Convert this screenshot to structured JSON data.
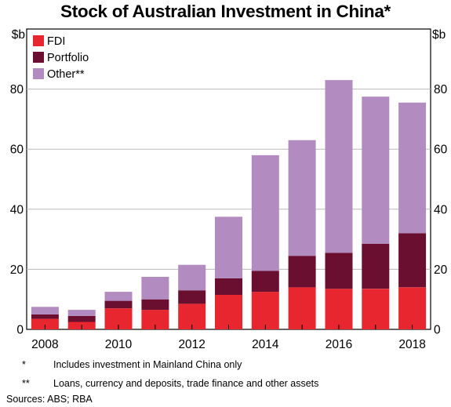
{
  "title": "Stock of Australian Investment in China*",
  "colors": {
    "fdi": "#e8262f",
    "portfolio": "#6b0f30",
    "other": "#b28bc1"
  },
  "chart_data": {
    "type": "bar",
    "stacked": true,
    "title": "Stock of Australian Investment in China*",
    "y_unit_left": "$b",
    "y_unit_right": "$b",
    "ylim": [
      0,
      100
    ],
    "yticks": [
      "0",
      "20",
      "40",
      "60",
      "80"
    ],
    "xtick_labels": [
      "2008",
      "2010",
      "2012",
      "2014",
      "2016",
      "2018"
    ],
    "categories": [
      "2008",
      "2009",
      "2010",
      "2011",
      "2012",
      "2013",
      "2014",
      "2015",
      "2016",
      "2017",
      "2018"
    ],
    "series": [
      {
        "name": "FDI",
        "values": [
          3.5,
          2.5,
          7,
          6.5,
          8.5,
          11.5,
          12.5,
          14,
          13.5,
          13.5,
          14
        ]
      },
      {
        "name": "Portfolio",
        "values": [
          1.5,
          2,
          2.5,
          3.5,
          4.5,
          5.5,
          7,
          10.5,
          12,
          15,
          18
        ]
      },
      {
        "name": "Other**",
        "values": [
          2.5,
          2,
          3,
          7.5,
          8.5,
          20.5,
          38.5,
          38.5,
          57.5,
          49,
          43.5
        ]
      }
    ],
    "legend_position": "top-left",
    "grid": "horizontal"
  },
  "notes": [
    {
      "symbol": "*",
      "text": "Includes investment in Mainland China only"
    },
    {
      "symbol": "**",
      "text": "Loans, currency and deposits, trade finance and other assets"
    }
  ],
  "sources": "Sources:   ABS; RBA"
}
